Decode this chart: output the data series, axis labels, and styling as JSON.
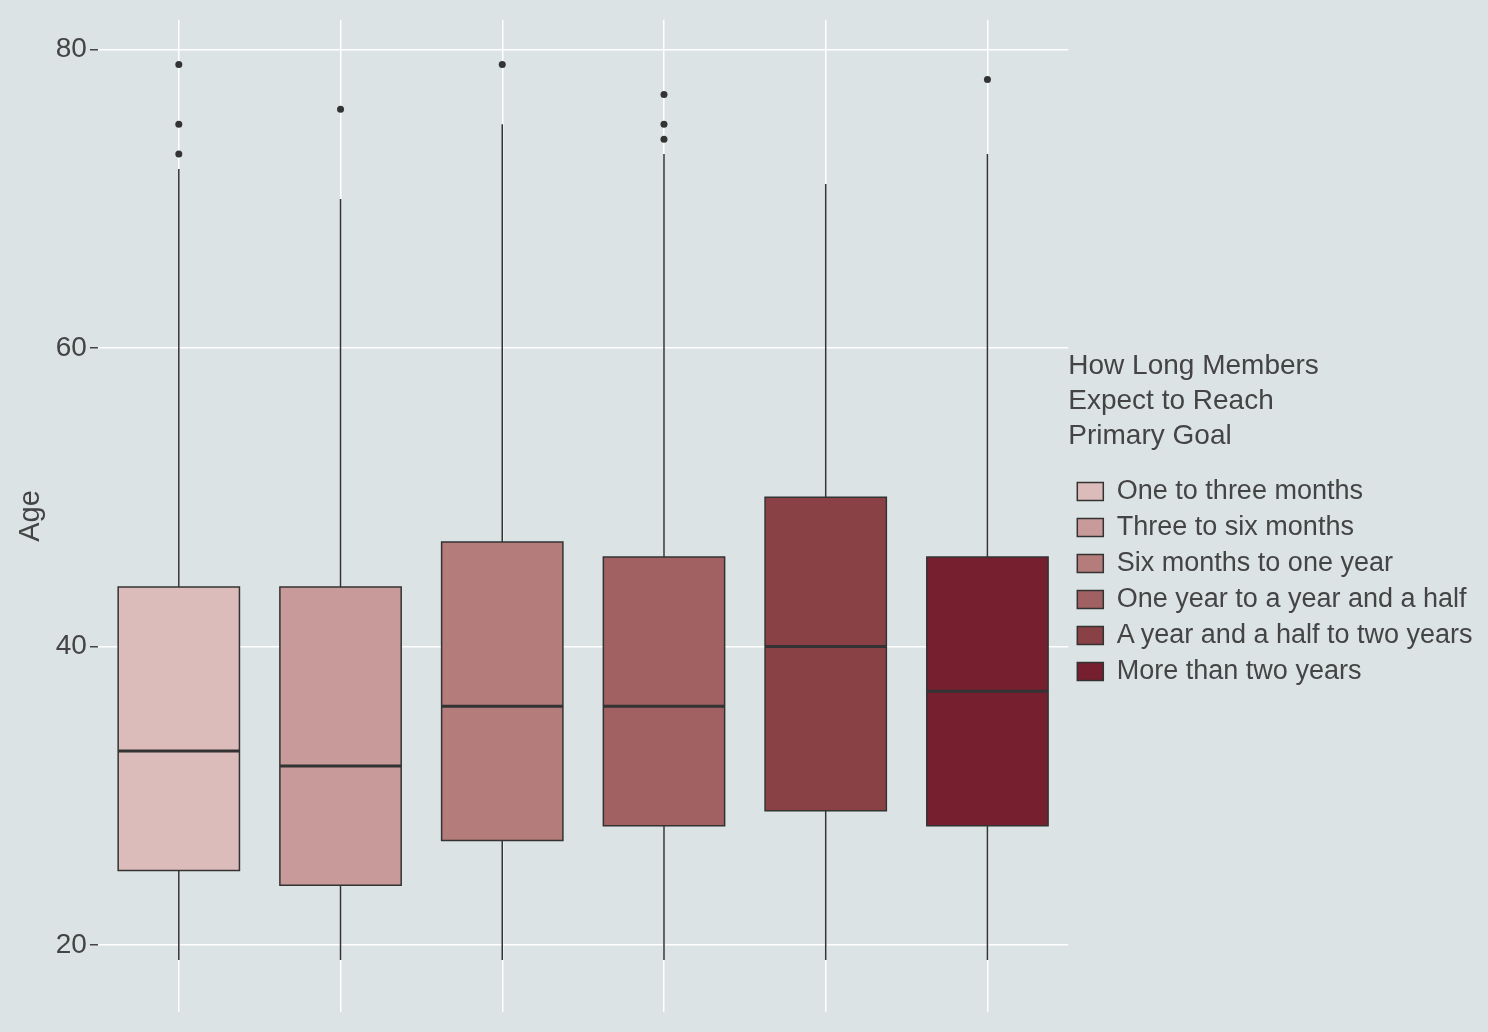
{
  "chart_data": {
    "type": "box",
    "ylabel": "Age",
    "legend_title": "How Long Members\nExpect to Reach\nPrimary Goal",
    "categories": [
      null,
      null,
      null,
      null,
      null,
      null
    ],
    "series": [
      {
        "name": "One to three months",
        "color": "#dbbcba",
        "boxes": [
          {
            "low": 19,
            "q1": 25,
            "median": 33,
            "q3": 44,
            "high": 72,
            "outliers": [
              73,
              75,
              79
            ]
          },
          null,
          null,
          null,
          null,
          null
        ]
      },
      {
        "name": "Three to six months",
        "color": "#c89b9a",
        "boxes": [
          null,
          {
            "low": 19,
            "q1": 24,
            "median": 32,
            "q3": 44,
            "high": 70,
            "outliers": [
              76
            ]
          },
          null,
          null,
          null,
          null
        ]
      },
      {
        "name": "Six months to one year",
        "color": "#b47c7b",
        "boxes": [
          null,
          null,
          {
            "low": 19,
            "q1": 27,
            "median": 36,
            "q3": 47,
            "high": 75,
            "outliers": [
              79
            ]
          },
          null,
          null,
          null
        ]
      },
      {
        "name": "One year to a year and a half",
        "color": "#a16062",
        "boxes": [
          null,
          null,
          null,
          {
            "low": 19,
            "q1": 28,
            "median": 36,
            "q3": 46,
            "high": 73,
            "outliers": [
              74,
              75,
              77
            ]
          },
          null,
          null
        ]
      },
      {
        "name": "A year and a half to two years",
        "color": "#8a4146",
        "boxes": [
          null,
          null,
          null,
          null,
          {
            "low": 19,
            "q1": 29,
            "median": 40,
            "q3": 50,
            "high": 71
          },
          null
        ]
      },
      {
        "name": "More than two years",
        "color": "#76202f",
        "boxes": [
          null,
          null,
          null,
          null,
          null,
          {
            "low": 19,
            "q1": 28,
            "median": 37,
            "q3": 46,
            "high": 73,
            "outliers": [
              78
            ]
          }
        ]
      }
    ],
    "ylim": [
      15.5,
      82
    ],
    "yticks": [
      20,
      40,
      60,
      80
    ],
    "grid": true,
    "legend": "right",
    "tick_labels": "y"
  }
}
